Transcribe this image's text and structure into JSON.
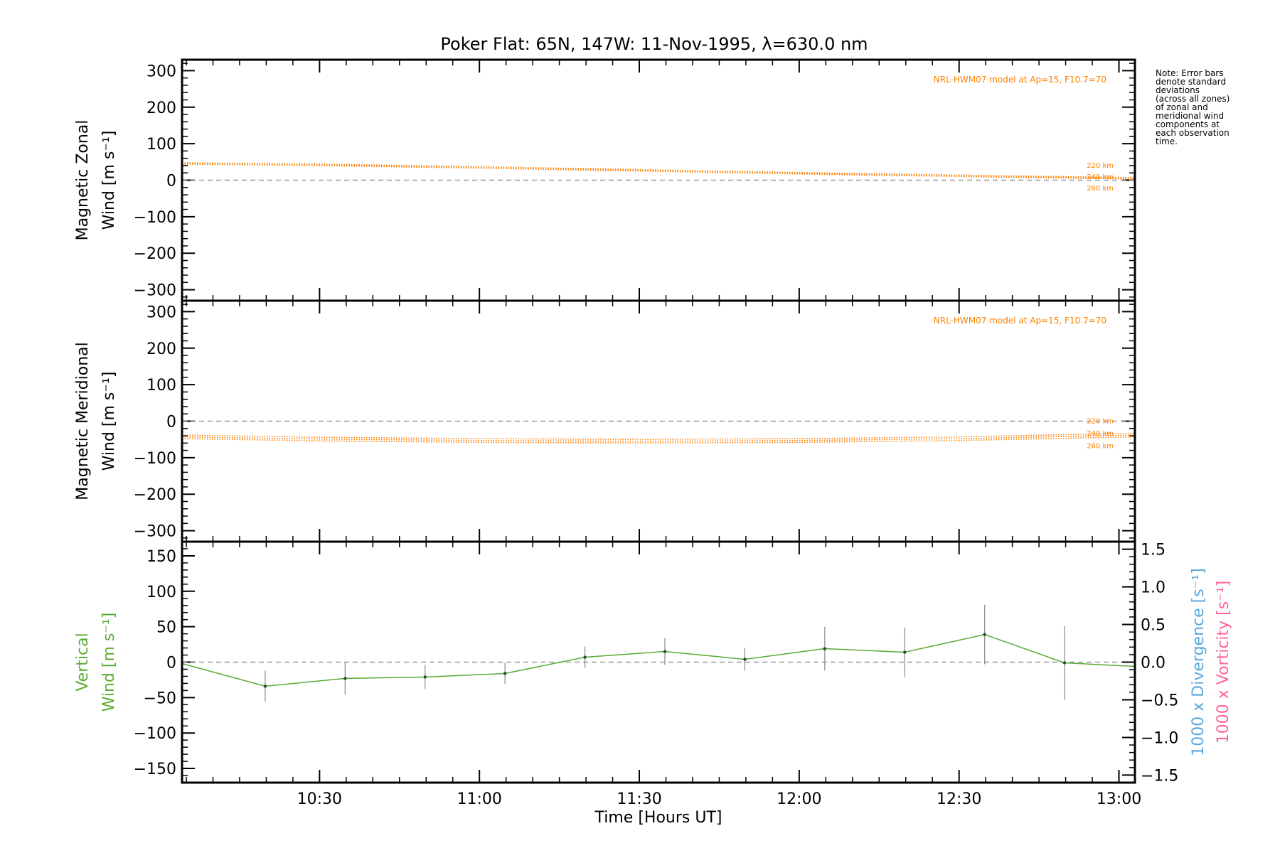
{
  "title": "Poker Flat: 65N, 147W: 11-Nov-1995, λ=630.0 nm",
  "note": [
    "Note: Error bars",
    "denote standard",
    "deviations",
    "(across all zones)",
    "of zonal and",
    "meridional wind",
    "components at",
    "each observation",
    "time."
  ],
  "colors": {
    "axis": "#000000",
    "model": "#ff7f00",
    "vertical": "#5aaa32",
    "divergence": "#5aa8dc",
    "vorticity": "#ff6496",
    "zero_line": "#999999",
    "error_bar": "#888888",
    "marker": "#1f4f3f"
  },
  "chart_data": [
    {
      "type": "line",
      "panel": "zonal",
      "ylabel": [
        "Magnetic Zonal",
        "Wind [m s⁻¹]"
      ],
      "ylim": [
        -330,
        330
      ],
      "yticks": [
        300,
        200,
        100,
        0,
        -100,
        -200,
        -300
      ],
      "yticklabels": [
        "300",
        "200",
        "100",
        "0",
        "−100",
        "−200",
        "−300"
      ],
      "xlim": [
        10.07,
        13.05
      ],
      "zero_line": true,
      "model_label": "NRL-HWM07 model at Ap=15, F10.7=70",
      "series": [
        {
          "name": "220 km",
          "x": [
            10.07,
            10.5,
            11.0,
            11.5,
            12.0,
            12.5,
            13.05
          ],
          "values": [
            48,
            44,
            37,
            29,
            21,
            14,
            7
          ]
        },
        {
          "name": "240 km",
          "x": [
            10.07,
            10.5,
            11.0,
            11.5,
            12.0,
            12.5,
            13.05
          ],
          "values": [
            46,
            42,
            35,
            27,
            19,
            12,
            5
          ]
        },
        {
          "name": "260 km",
          "x": [
            10.07,
            10.5,
            11.0,
            11.5,
            12.0,
            12.5,
            13.05
          ],
          "values": [
            44,
            40,
            33,
            25,
            17,
            10,
            3
          ]
        }
      ]
    },
    {
      "type": "line",
      "panel": "meridional",
      "ylabel": [
        "Magnetic Meridional",
        "Wind [m s⁻¹]"
      ],
      "ylim": [
        -330,
        330
      ],
      "yticks": [
        300,
        200,
        100,
        0,
        -100,
        -200,
        -300
      ],
      "yticklabels": [
        "300",
        "200",
        "100",
        "0",
        "−100",
        "−200",
        "−300"
      ],
      "xlim": [
        10.07,
        13.05
      ],
      "zero_line": true,
      "model_label": "NRL-HWM07 model at Ap=15, F10.7=70",
      "series": [
        {
          "name": "220 km",
          "x": [
            10.07,
            10.5,
            11.0,
            11.5,
            12.0,
            12.5,
            13.05
          ],
          "values": [
            -38,
            -44,
            -48,
            -50,
            -48,
            -43,
            -33
          ]
        },
        {
          "name": "240 km",
          "x": [
            10.07,
            10.5,
            11.0,
            11.5,
            12.0,
            12.5,
            13.05
          ],
          "values": [
            -43,
            -49,
            -53,
            -55,
            -53,
            -48,
            -38
          ]
        },
        {
          "name": "260 km",
          "x": [
            10.07,
            10.5,
            11.0,
            11.5,
            12.0,
            12.5,
            13.05
          ],
          "values": [
            -48,
            -54,
            -58,
            -60,
            -58,
            -53,
            -43
          ]
        }
      ]
    },
    {
      "type": "line",
      "panel": "vertical",
      "ylabel": [
        "Vertical",
        "Wind [m s⁻¹]"
      ],
      "ylim": [
        -170,
        170
      ],
      "yticks": [
        150,
        100,
        50,
        0,
        -50,
        -100,
        -150
      ],
      "yticklabels": [
        "150",
        "100",
        "50",
        "0",
        "−50",
        "−100",
        "−150"
      ],
      "y2lim": [
        -1.6,
        1.6
      ],
      "y2ticks": [
        1.5,
        1.0,
        0.5,
        0.0,
        -0.5,
        -1.0,
        -1.5
      ],
      "y2ticklabels": [
        "1.5",
        "1.0",
        "0.5",
        "0.0",
        "−0.5",
        "−1.0",
        "−1.5"
      ],
      "y2label_divergence": "1000 x Divergence [s⁻¹]",
      "y2label_vorticity": "1000 x Vorticity [s⁻¹]",
      "xlim": [
        10.07,
        13.05
      ],
      "xticks": [
        10.5,
        11.0,
        11.5,
        12.0,
        12.5,
        13.0
      ],
      "xticklabels": [
        "10:30",
        "11:00",
        "11:30",
        "12:00",
        "12:30",
        "13:00"
      ],
      "xlabel": "Time [Hours UT]",
      "zero_line": true,
      "series": [
        {
          "x": [
            10.07,
            10.33,
            10.58,
            10.83,
            11.08,
            11.33,
            11.58,
            11.83,
            12.08,
            12.33,
            12.58,
            12.83,
            13.05
          ],
          "values": [
            -2,
            -34,
            -23,
            -21,
            -16,
            7,
            15,
            4,
            19,
            14,
            39,
            -1,
            -6
          ],
          "error": [
            null,
            22,
            23,
            17,
            15,
            15,
            19,
            16,
            31,
            35,
            42,
            52,
            null
          ]
        }
      ]
    }
  ]
}
